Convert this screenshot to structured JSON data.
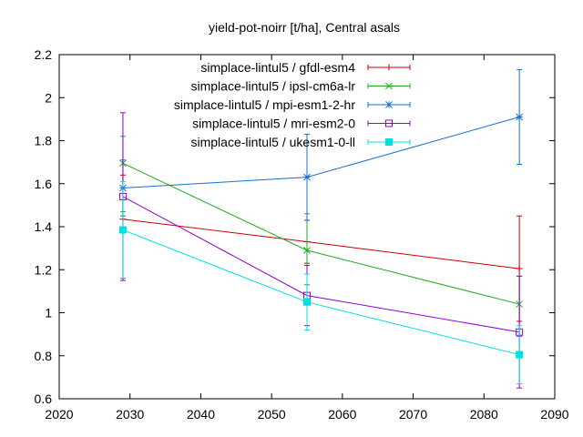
{
  "chart_data": {
    "type": "line",
    "title": "yield-pot-noirr [t/ha], Central asals",
    "xlabel": "",
    "ylabel": "",
    "xlim": [
      2020,
      2090
    ],
    "ylim": [
      0.6,
      2.2
    ],
    "xticks": [
      2020,
      2030,
      2040,
      2050,
      2060,
      2070,
      2080,
      2090
    ],
    "yticks": [
      0.6,
      0.8,
      1.0,
      1.2,
      1.4,
      1.6,
      1.8,
      2.0,
      2.2
    ],
    "ytick_labels": [
      "0.6",
      "0.8",
      "1",
      "1.2",
      "1.4",
      "1.6",
      "1.8",
      "2",
      "2.2"
    ],
    "legend_position": "top-right",
    "grid": false,
    "x": [
      2029,
      2055,
      2085
    ],
    "series": [
      {
        "name": "simplace-lintul5 / gfdl-esm4",
        "color": "#cc0000",
        "marker": "plus",
        "values": [
          1.435,
          1.33,
          1.205
        ],
        "err_low": [
          1.16,
          1.23,
          0.96
        ],
        "err_high": [
          1.64,
          1.43,
          1.45
        ]
      },
      {
        "name": "simplace-lintul5 / ipsl-cm6a-lr",
        "color": "#22aa22",
        "marker": "x",
        "values": [
          1.695,
          1.29,
          1.04
        ],
        "err_low": [
          1.47,
          1.13,
          0.89
        ],
        "err_high": [
          1.82,
          1.46,
          1.17
        ]
      },
      {
        "name": "simplace-lintul5 / mpi-esm1-2-hr",
        "color": "#1a6ecb",
        "marker": "star",
        "values": [
          1.58,
          1.63,
          1.91
        ],
        "err_low": [
          1.45,
          1.43,
          1.69
        ],
        "err_high": [
          1.71,
          1.83,
          2.13
        ]
      },
      {
        "name": "simplace-lintul5 / mri-esm2-0",
        "color": "#9400d3",
        "marker": "square-open",
        "values": [
          1.54,
          1.08,
          0.91
        ],
        "err_low": [
          1.15,
          0.94,
          0.65
        ],
        "err_high": [
          1.93,
          1.22,
          1.17
        ]
      },
      {
        "name": "simplace-lintul5 / ukesm1-0-ll",
        "color": "#00e0e0",
        "marker": "square-filled",
        "values": [
          1.385,
          1.05,
          0.805
        ],
        "err_low": [
          1.16,
          0.92,
          0.67
        ],
        "err_high": [
          1.61,
          1.18,
          0.94
        ]
      }
    ]
  }
}
